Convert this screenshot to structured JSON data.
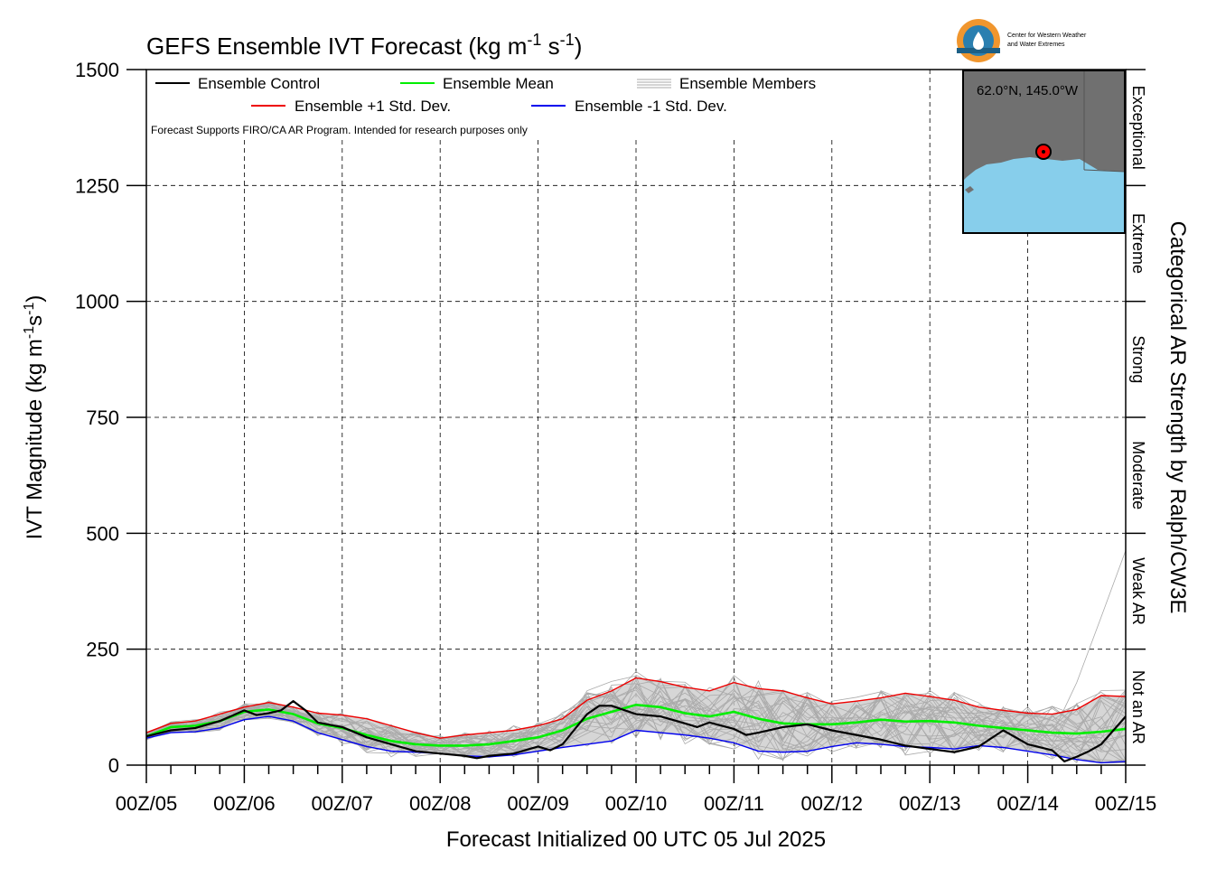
{
  "chart_data": {
    "type": "line",
    "title": "GEFS Ensemble IVT Forecast (kg m",
    "title_exp1": "-1",
    "title_mid": " s",
    "title_exp2": "-1",
    "title_end": ")",
    "xlabel": "Forecast Initialized 00 UTC 05 Jul 2025",
    "ylabel": "IVT Magnitude (kg m",
    "ylabel_exp1": "-1",
    "ylabel_mid": "s",
    "ylabel_exp2": "-1",
    "ylabel_end": ")",
    "right_label": "Categorical AR Strength by Ralph/CW3E",
    "note": "Forecast Supports FIRO/CA AR Program. Intended for research purposes only",
    "logo_text_line1": "Center for Western Weather",
    "logo_text_line2": "and Water Extremes",
    "inset_label": "62.0°N, 145.0°W",
    "ylim": [
      0,
      1500
    ],
    "xlim": [
      0,
      10
    ],
    "yticks": [
      0,
      250,
      500,
      750,
      1000,
      1250,
      1500
    ],
    "ytick_labels": [
      "0",
      "250",
      "500",
      "750",
      "1000",
      "1250",
      "1500"
    ],
    "xtick_labels": [
      "00Z/05",
      "00Z/06",
      "00Z/07",
      "00Z/08",
      "00Z/09",
      "00Z/10",
      "00Z/11",
      "00Z/12",
      "00Z/13",
      "00Z/14",
      "00Z/15"
    ],
    "categories": [
      {
        "label": "Not an AR",
        "from": 0,
        "to": 250
      },
      {
        "label": "Weak AR",
        "from": 250,
        "to": 500
      },
      {
        "label": "Moderate",
        "from": 500,
        "to": 750
      },
      {
        "label": "Strong",
        "from": 750,
        "to": 1000
      },
      {
        "label": "Extreme",
        "from": 1000,
        "to": 1250
      },
      {
        "label": "Exceptional",
        "from": 1250,
        "to": 1500
      }
    ],
    "legend": {
      "control": "Ensemble Control",
      "mean": "Ensemble Mean",
      "members": "Ensemble Members",
      "plus": "Ensemble +1 Std. Dev.",
      "minus": "Ensemble -1 Std. Dev."
    },
    "colors": {
      "control": "#000000",
      "mean": "#00ee00",
      "members": "#aaaaaa",
      "plus": "#ee0000",
      "minus": "#0000ee",
      "spread_fill": "#cccccc",
      "inset_land": "#707070",
      "inset_water": "#87ceeb",
      "marker": "#ff0000",
      "logo_orange": "#f0962e",
      "logo_blue": "#2a7fb0"
    },
    "grid": true,
    "series": [
      {
        "name": "Ensemble +1 Std. Dev.",
        "key": "plus",
        "x": [
          0,
          0.25,
          0.5,
          0.75,
          1,
          1.25,
          1.5,
          1.75,
          2,
          2.25,
          2.5,
          2.75,
          3,
          3.25,
          3.5,
          3.75,
          4,
          4.25,
          4.5,
          4.75,
          5,
          5.25,
          5.5,
          5.75,
          6,
          6.25,
          6.5,
          6.75,
          7,
          7.25,
          7.5,
          7.75,
          8,
          8.25,
          8.5,
          8.75,
          9,
          9.25,
          9.5,
          9.75,
          10
        ],
        "y": [
          70,
          90,
          95,
          110,
          125,
          135,
          125,
          112,
          108,
          100,
          85,
          70,
          58,
          65,
          70,
          75,
          85,
          100,
          140,
          160,
          188,
          180,
          168,
          160,
          178,
          165,
          160,
          145,
          132,
          138,
          145,
          155,
          148,
          140,
          125,
          118,
          112,
          110,
          120,
          150,
          148
        ]
      },
      {
        "name": "Ensemble -1 Std. Dev.",
        "key": "minus",
        "x": [
          0,
          0.25,
          0.5,
          0.75,
          1,
          1.25,
          1.5,
          1.75,
          2,
          2.25,
          2.5,
          2.75,
          3,
          3.25,
          3.5,
          3.75,
          4,
          4.25,
          4.5,
          4.75,
          5,
          5.25,
          5.5,
          5.75,
          6,
          6.25,
          6.5,
          6.75,
          7,
          7.25,
          7.5,
          7.75,
          8,
          8.25,
          8.5,
          8.75,
          9,
          9.25,
          9.5,
          9.75,
          10
        ],
        "y": [
          58,
          70,
          72,
          80,
          98,
          105,
          95,
          70,
          55,
          40,
          30,
          28,
          25,
          20,
          18,
          22,
          30,
          38,
          45,
          52,
          75,
          70,
          65,
          58,
          48,
          30,
          28,
          30,
          40,
          48,
          45,
          40,
          38,
          35,
          42,
          38,
          30,
          22,
          12,
          5,
          8
        ]
      },
      {
        "name": "Ensemble Mean",
        "key": "mean",
        "x": [
          0,
          0.25,
          0.5,
          0.75,
          1,
          1.25,
          1.5,
          1.75,
          2,
          2.25,
          2.5,
          2.75,
          3,
          3.25,
          3.5,
          3.75,
          4,
          4.25,
          4.5,
          4.75,
          5,
          5.25,
          5.5,
          5.75,
          6,
          6.25,
          6.5,
          6.75,
          7,
          7.25,
          7.5,
          7.75,
          8,
          8.25,
          8.5,
          8.75,
          9,
          9.25,
          9.5,
          9.75,
          10
        ],
        "y": [
          62,
          82,
          85,
          95,
          115,
          120,
          110,
          90,
          80,
          65,
          52,
          45,
          42,
          42,
          45,
          52,
          60,
          75,
          100,
          115,
          130,
          125,
          112,
          105,
          115,
          100,
          90,
          88,
          88,
          92,
          98,
          94,
          95,
          92,
          85,
          80,
          75,
          70,
          68,
          72,
          78
        ]
      },
      {
        "name": "Ensemble Control",
        "key": "control",
        "x": [
          0,
          0.25,
          0.5,
          0.75,
          1,
          1.125,
          1.25,
          1.375,
          1.5,
          1.625,
          1.75,
          2,
          2.25,
          2.5,
          2.75,
          3,
          3.25,
          3.375,
          3.5,
          3.75,
          4,
          4.125,
          4.25,
          4.5,
          4.625,
          4.75,
          5,
          5.25,
          5.5,
          5.625,
          5.75,
          6,
          6.125,
          6.25,
          6.5,
          6.75,
          7,
          7.25,
          7.5,
          7.75,
          8,
          8.25,
          8.5,
          8.75,
          9,
          9.25,
          9.375,
          9.5,
          9.625,
          9.75,
          9.875,
          10
        ],
        "y": [
          62,
          75,
          80,
          95,
          118,
          108,
          112,
          118,
          138,
          118,
          92,
          82,
          60,
          45,
          30,
          25,
          20,
          15,
          20,
          25,
          40,
          32,
          45,
          110,
          128,
          128,
          110,
          105,
          90,
          82,
          92,
          78,
          65,
          70,
          82,
          88,
          75,
          65,
          55,
          42,
          35,
          28,
          40,
          75,
          45,
          32,
          8,
          18,
          30,
          45,
          75,
          105
        ]
      }
    ],
    "members_count": 30
  }
}
